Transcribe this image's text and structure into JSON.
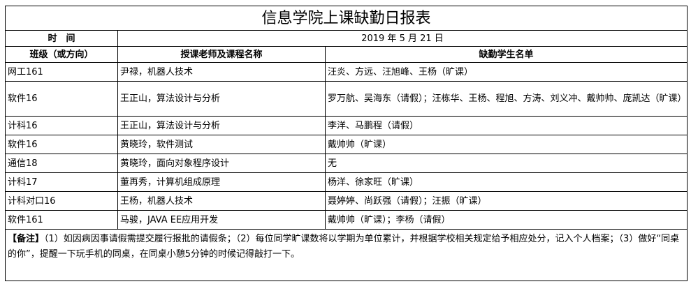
{
  "title": "信息学院上课缺勤日报表",
  "time_label": "时　间",
  "date": "2019 年 5 月 21 日",
  "headers": [
    "班级（或方向）",
    "授课老师及课程名称",
    "缺勤学生名单"
  ],
  "rows": [
    [
      "网工161",
      "尹禄，机器人技术",
      "汪炎、方远、汪旭峰、王杨（旷课）"
    ],
    [
      "软件16",
      "王正山，算法设计与分析",
      "罗万航、吴海东（请假）；汪栋华、王杨、程旭、方涛、刘义冲、戴帅帅、庞凯达（旷课）"
    ],
    [
      "计科16",
      "王正山，算法设计与分析",
      "李洋、马鹏程（请假）"
    ],
    [
      "软件16",
      "黄晓玲，软件测试",
      "戴帅帅（旷课）"
    ],
    [
      "通信18",
      "黄晓玲，面向对象程序设计",
      "无"
    ],
    [
      "计科17",
      "董再秀，计算机组成原理",
      "杨洋、徐家旺（旷课）"
    ],
    [
      "计科对口16",
      "王杨，机器人技术",
      "聂婷婷、尚跃强（请假）；汪振（旷课）"
    ],
    [
      "软件161",
      "马骏，JAVA EE应用开发",
      "戴帅帅（旷课）；李杨（请假）"
    ]
  ],
  "notes": {
    "label": "【备注】",
    "text": "（1）如因病因事请假需提交履行报批的请假条；（2）每位同学旷课数将以学期为单位累计，并根据学校相关规定给予相应处分，记入个人档案；（3）做好“同桌的你”，提醒一下玩手机的同桌，在同桌小憩5分钟的时候记得敲打一下。"
  }
}
